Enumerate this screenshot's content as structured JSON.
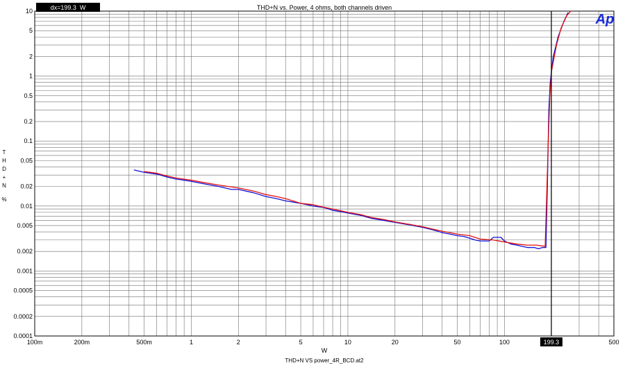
{
  "chart_data": {
    "type": "line",
    "title": "THD+N vs. Power, 4 ohms, both channels driven",
    "xlabel": "W",
    "ylabel": "THD+N",
    "ylabel_unit": "%",
    "x_scale": "log",
    "y_scale": "log",
    "xlim": [
      0.1,
      500
    ],
    "ylim": [
      0.0001,
      10
    ],
    "x_ticks": [
      {
        "v": 0.1,
        "label": "100m"
      },
      {
        "v": 0.2,
        "label": "200m"
      },
      {
        "v": 0.5,
        "label": "500m"
      },
      {
        "v": 1,
        "label": "1"
      },
      {
        "v": 2,
        "label": "2"
      },
      {
        "v": 5,
        "label": "5"
      },
      {
        "v": 10,
        "label": "10"
      },
      {
        "v": 20,
        "label": "20"
      },
      {
        "v": 50,
        "label": "50"
      },
      {
        "v": 100,
        "label": "100"
      },
      {
        "v": 200,
        "label": "200"
      },
      {
        "v": 500,
        "label": "500"
      }
    ],
    "y_ticks": [
      {
        "v": 10,
        "label": "10"
      },
      {
        "v": 5,
        "label": "5"
      },
      {
        "v": 2,
        "label": "2"
      },
      {
        "v": 1,
        "label": "1"
      },
      {
        "v": 0.5,
        "label": "0.5"
      },
      {
        "v": 0.2,
        "label": "0.2"
      },
      {
        "v": 0.1,
        "label": "0.1"
      },
      {
        "v": 0.05,
        "label": "0.05"
      },
      {
        "v": 0.02,
        "label": "0.02"
      },
      {
        "v": 0.01,
        "label": "0.01"
      },
      {
        "v": 0.005,
        "label": "0.005"
      },
      {
        "v": 0.002,
        "label": "0.002"
      },
      {
        "v": 0.001,
        "label": "0.001"
      },
      {
        "v": 0.0005,
        "label": "0.0005"
      },
      {
        "v": 0.0002,
        "label": "0.0002"
      },
      {
        "v": 0.0001,
        "label": "0.0001"
      }
    ],
    "grid": true,
    "cursor": {
      "x": 199.3,
      "label": "199.3",
      "readout": "dx=199.3  W"
    },
    "footer": "THD+N VS power_4R_BCD.at2",
    "logo": "Ap",
    "series": [
      {
        "color": "#1010d8",
        "points": [
          [
            0.43,
            0.036
          ],
          [
            0.5,
            0.033
          ],
          [
            0.6,
            0.031
          ],
          [
            0.7,
            0.028
          ],
          [
            0.8,
            0.026
          ],
          [
            0.9,
            0.025
          ],
          [
            1.0,
            0.024
          ],
          [
            1.2,
            0.022
          ],
          [
            1.5,
            0.02
          ],
          [
            1.8,
            0.018
          ],
          [
            2.0,
            0.018
          ],
          [
            2.5,
            0.016
          ],
          [
            3.0,
            0.014
          ],
          [
            3.5,
            0.013
          ],
          [
            4.0,
            0.012
          ],
          [
            5.0,
            0.011
          ],
          [
            6.0,
            0.01
          ],
          [
            7.0,
            0.0095
          ],
          [
            8.0,
            0.0086
          ],
          [
            9.0,
            0.0082
          ],
          [
            10,
            0.0078
          ],
          [
            12,
            0.0072
          ],
          [
            14,
            0.0065
          ],
          [
            17,
            0.006
          ],
          [
            20,
            0.0056
          ],
          [
            25,
            0.0051
          ],
          [
            30,
            0.0047
          ],
          [
            35,
            0.0043
          ],
          [
            40,
            0.0039
          ],
          [
            45,
            0.0037
          ],
          [
            50,
            0.0035
          ],
          [
            55,
            0.0034
          ],
          [
            60,
            0.0032
          ],
          [
            65,
            0.003
          ],
          [
            70,
            0.0029
          ],
          [
            80,
            0.0029
          ],
          [
            85,
            0.0033
          ],
          [
            95,
            0.0033
          ],
          [
            100,
            0.0029
          ],
          [
            110,
            0.0026
          ],
          [
            120,
            0.0025
          ],
          [
            140,
            0.0023
          ],
          [
            155,
            0.0023
          ],
          [
            165,
            0.0022
          ],
          [
            175,
            0.0023
          ],
          [
            184,
            0.0023
          ],
          [
            188,
            0.02
          ],
          [
            192,
            0.3
          ],
          [
            196,
            0.8
          ],
          [
            205,
            2.0
          ],
          [
            220,
            4.0
          ],
          [
            240,
            7.0
          ],
          [
            255,
            9.5
          ]
        ]
      },
      {
        "color": "#e01010",
        "points": [
          [
            0.5,
            0.034
          ],
          [
            0.6,
            0.032
          ],
          [
            0.7,
            0.029
          ],
          [
            0.8,
            0.027
          ],
          [
            1.0,
            0.025
          ],
          [
            1.2,
            0.023
          ],
          [
            1.5,
            0.021
          ],
          [
            2.0,
            0.019
          ],
          [
            2.5,
            0.017
          ],
          [
            3.0,
            0.015
          ],
          [
            3.5,
            0.014
          ],
          [
            4.0,
            0.013
          ],
          [
            5.0,
            0.011
          ],
          [
            6.0,
            0.0105
          ],
          [
            7.0,
            0.0096
          ],
          [
            8.0,
            0.009
          ],
          [
            10,
            0.008
          ],
          [
            12,
            0.0074
          ],
          [
            14,
            0.0067
          ],
          [
            17,
            0.0062
          ],
          [
            20,
            0.0057
          ],
          [
            25,
            0.0052
          ],
          [
            30,
            0.0048
          ],
          [
            35,
            0.0044
          ],
          [
            40,
            0.0041
          ],
          [
            50,
            0.0037
          ],
          [
            60,
            0.0035
          ],
          [
            70,
            0.0031
          ],
          [
            85,
            0.003
          ],
          [
            100,
            0.0028
          ],
          [
            120,
            0.0026
          ],
          [
            140,
            0.0025
          ],
          [
            160,
            0.0025
          ],
          [
            182,
            0.0024
          ],
          [
            190,
            0.08
          ],
          [
            195,
            0.5
          ],
          [
            200,
            1.2
          ],
          [
            215,
            3.0
          ],
          [
            230,
            5.5
          ],
          [
            250,
            8.5
          ],
          [
            265,
            10.5
          ]
        ]
      }
    ]
  }
}
